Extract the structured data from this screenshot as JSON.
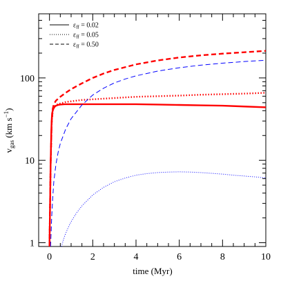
{
  "chart_data": {
    "type": "line",
    "xlabel": "time (Myr)",
    "ylabel": "v_gas (km s^-1)",
    "ylabel_main": "v",
    "ylabel_sub": "gas",
    "ylabel_units": " (km s",
    "ylabel_exp": "−1",
    "ylabel_close": ")",
    "xlim": [
      -0.5,
      10
    ],
    "ylim": [
      0.9,
      600
    ],
    "yscale": "log",
    "x_ticks": [
      0,
      2,
      4,
      6,
      8,
      10
    ],
    "x_tick_labels": [
      "0",
      "2",
      "4",
      "6",
      "8",
      "10"
    ],
    "y_ticks": [
      1,
      10,
      100
    ],
    "y_tick_labels": [
      "1",
      "10",
      "100"
    ],
    "legend": {
      "position": "top-left",
      "entries": [
        {
          "label_prefix": "ε",
          "label_sub": "ff",
          "label_value": " = 0.02",
          "dash": "solid"
        },
        {
          "label_prefix": "ε",
          "label_sub": "ff",
          "label_value": " = 0.05",
          "dash": "dotted"
        },
        {
          "label_prefix": "ε",
          "label_sub": "ff",
          "label_value": " = 0.50",
          "dash": "dashed"
        }
      ]
    },
    "series": [
      {
        "color": "#ff0000",
        "dash": "solid",
        "weight": "thick",
        "x": [
          0.0,
          0.02,
          0.05,
          0.08,
          0.1,
          0.12,
          0.15,
          0.18,
          0.2,
          0.25,
          0.3,
          0.4,
          0.5,
          0.7,
          1.0,
          1.5,
          2.0,
          3.0,
          4.0,
          5.0,
          6.0,
          7.0,
          8.0,
          9.0,
          10.0
        ],
        "y": [
          0.9,
          2.0,
          8.0,
          20.0,
          30.0,
          37.0,
          40.0,
          42.0,
          43.0,
          45.0,
          46.0,
          47.0,
          47.5,
          48.0,
          48.0,
          48.0,
          48.0,
          48.0,
          48.0,
          47.5,
          47.0,
          46.5,
          46.0,
          45.0,
          44.0
        ]
      },
      {
        "color": "#ff0000",
        "dash": "dotted",
        "weight": "thick",
        "x": [
          0.0,
          0.05,
          0.1,
          0.15,
          0.2,
          0.3,
          0.5,
          0.75,
          1.0,
          1.5,
          2.0,
          3.0,
          4.0,
          5.0,
          6.0,
          7.0,
          8.0,
          9.0,
          10.0
        ],
        "y": [
          0.9,
          8.0,
          28.0,
          40.0,
          44.0,
          47.0,
          49.0,
          51.0,
          52.0,
          54.0,
          55.0,
          57.0,
          59.0,
          60.0,
          61.0,
          62.5,
          63.5,
          64.5,
          66.0
        ]
      },
      {
        "color": "#ff0000",
        "dash": "dashed",
        "weight": "thick",
        "x": [
          0.0,
          0.05,
          0.1,
          0.15,
          0.2,
          0.3,
          0.4,
          0.5,
          0.75,
          1.0,
          1.5,
          2.0,
          2.5,
          3.0,
          4.0,
          5.0,
          6.0,
          7.0,
          8.0,
          9.0,
          10.0
        ],
        "y": [
          0.9,
          8.0,
          28.0,
          42.0,
          48.0,
          53.0,
          56.0,
          59.0,
          66.0,
          73.0,
          86.0,
          100.0,
          113.0,
          125.0,
          146.0,
          163.0,
          177.0,
          188.0,
          197.0,
          205.0,
          213.0
        ]
      },
      {
        "color": "#0000ff",
        "dash": "dashed",
        "weight": "thin",
        "x": [
          0.05,
          0.08,
          0.1,
          0.15,
          0.2,
          0.3,
          0.4,
          0.5,
          0.75,
          1.0,
          1.5,
          2.0,
          2.5,
          3.0,
          3.5,
          4.0,
          5.0,
          6.0,
          7.0,
          8.0,
          9.0,
          10.0
        ],
        "y": [
          0.9,
          1.4,
          2.0,
          3.5,
          5.5,
          9.0,
          12.5,
          16.0,
          24.0,
          32.0,
          47.0,
          62.0,
          75.0,
          87.0,
          97.0,
          106.0,
          121.0,
          133.0,
          143.0,
          151.0,
          158.0,
          164.0
        ]
      },
      {
        "color": "#0000ff",
        "dash": "dotted",
        "weight": "thin",
        "x": [
          0.55,
          0.7,
          0.85,
          1.0,
          1.25,
          1.5,
          2.0,
          2.5,
          3.0,
          3.5,
          4.0,
          4.5,
          5.0,
          5.5,
          6.0,
          6.5,
          7.0,
          7.5,
          8.0,
          8.5,
          9.0,
          9.5,
          10.0
        ],
        "y": [
          0.9,
          1.2,
          1.5,
          1.8,
          2.3,
          2.8,
          3.8,
          4.7,
          5.5,
          6.1,
          6.6,
          6.9,
          7.1,
          7.2,
          7.25,
          7.2,
          7.1,
          6.95,
          6.8,
          6.6,
          6.45,
          6.3,
          6.1
        ]
      }
    ]
  }
}
